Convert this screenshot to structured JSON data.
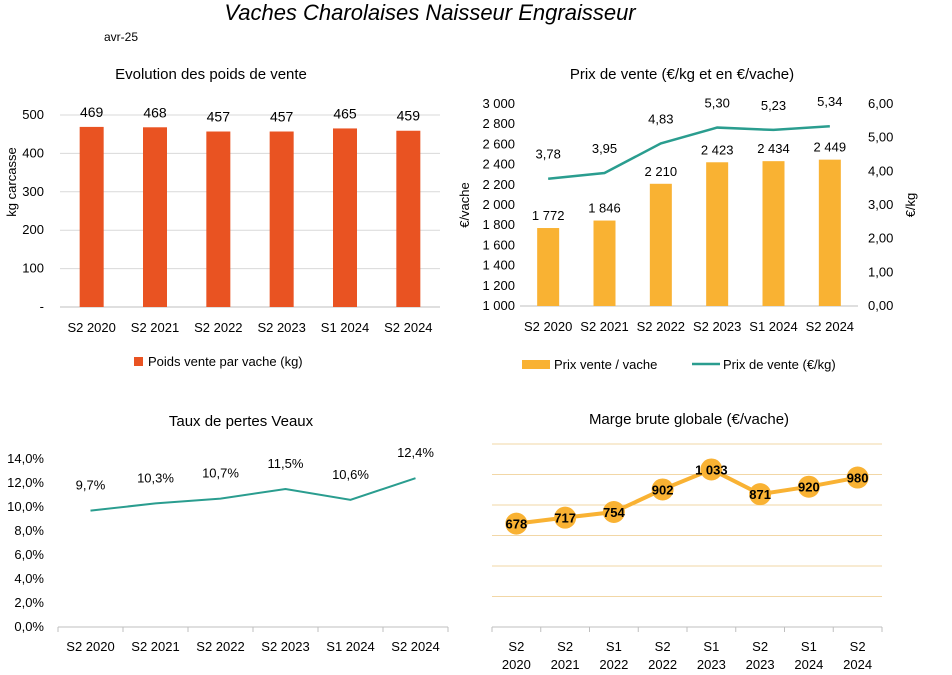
{
  "page": {
    "title": "Vaches Charolaises Naisseur Engraisseur",
    "subtitle": "avr-25"
  },
  "colors": {
    "bar_red": "#e95322",
    "bar_yellow": "#f9b233",
    "line_teal": "#2a9d8f",
    "marge_line": "#f9b233",
    "grid": "#d9d9d9",
    "marge_grid": "#f2d7a6"
  },
  "chart_data": [
    {
      "id": "poids",
      "type": "bar",
      "title": "Evolution des poids de vente",
      "ylabel": "kg carcasse",
      "categories": [
        "S2 2020",
        "S2 2021",
        "S2 2022",
        "S2 2023",
        "S1 2024",
        "S2 2024"
      ],
      "series": [
        {
          "name": "Poids vente par vache (kg)",
          "values": [
            469,
            468,
            457,
            457,
            465,
            459
          ]
        }
      ],
      "ylim": [
        0,
        500
      ],
      "yticks": [
        "-",
        "100",
        "200",
        "300",
        "400",
        "500"
      ],
      "data_labels": [
        "469",
        "468",
        "457",
        "457",
        "465",
        "459"
      ],
      "grid": true,
      "legend": "bottom"
    },
    {
      "id": "prix",
      "type": "bar+line",
      "title": "Prix de vente (€/kg et en €/vache)",
      "ylabel_left": "€/vache",
      "ylabel_right": "€/kg",
      "categories": [
        "S2 2020",
        "S2 2021",
        "S2 2022",
        "S2 2023",
        "S1 2024",
        "S2 2024"
      ],
      "series": [
        {
          "name": "Prix vente / vache",
          "type": "bar",
          "axis": "left",
          "values": [
            1772,
            1846,
            2210,
            2423,
            2434,
            2449
          ],
          "labels": [
            "1 772",
            "1 846",
            "2 210",
            "2 423",
            "2 434",
            "2 449"
          ]
        },
        {
          "name": "Prix de vente (€/kg)",
          "type": "line",
          "axis": "right",
          "values": [
            3.78,
            3.95,
            4.83,
            5.3,
            5.23,
            5.34
          ],
          "labels": [
            "3,78",
            "3,95",
            "4,83",
            "5,30",
            "5,23",
            "5,34"
          ]
        }
      ],
      "ylim_left": [
        1000,
        3000
      ],
      "yticks_left": [
        "1 000",
        "1 200",
        "1 400",
        "1 600",
        "1 800",
        "2 000",
        "2 200",
        "2 400",
        "2 600",
        "2 800",
        "3 000"
      ],
      "ylim_right": [
        0,
        6
      ],
      "yticks_right": [
        "0,00",
        "1,00",
        "2,00",
        "3,00",
        "4,00",
        "5,00",
        "6,00"
      ],
      "grid": false,
      "legend": "bottom"
    },
    {
      "id": "pertes",
      "type": "line",
      "title": "Taux de pertes Veaux",
      "categories": [
        "S2 2020",
        "S2 2021",
        "S2 2022",
        "S2 2023",
        "S1 2024",
        "S2 2024"
      ],
      "series": [
        {
          "values": [
            9.7,
            10.3,
            10.7,
            11.5,
            10.6,
            12.4
          ],
          "labels": [
            "9,7%",
            "10,3%",
            "10,7%",
            "11,5%",
            "10,6%",
            "12,4%"
          ]
        }
      ],
      "ylim": [
        0,
        14
      ],
      "yticks": [
        "0,0%",
        "2,0%",
        "4,0%",
        "6,0%",
        "8,0%",
        "10,0%",
        "12,0%",
        "14,0%"
      ],
      "grid": false
    },
    {
      "id": "marge",
      "type": "line",
      "title": "Marge brute globale (€/vache)",
      "categories": [
        [
          "S2",
          "2020"
        ],
        [
          "S2",
          "2021"
        ],
        [
          "S1",
          "2022"
        ],
        [
          "S2",
          "2022"
        ],
        [
          "S1",
          "2023"
        ],
        [
          "S2",
          "2023"
        ],
        [
          "S1",
          "2024"
        ],
        [
          "S2",
          "2024"
        ]
      ],
      "series": [
        {
          "values": [
            678,
            717,
            754,
            902,
            1033,
            871,
            920,
            980
          ],
          "labels": [
            "678",
            "717",
            "754",
            "902",
            "1 033",
            "871",
            "920",
            "980"
          ]
        }
      ],
      "ylim": [
        0,
        1200
      ],
      "grid": true
    }
  ]
}
